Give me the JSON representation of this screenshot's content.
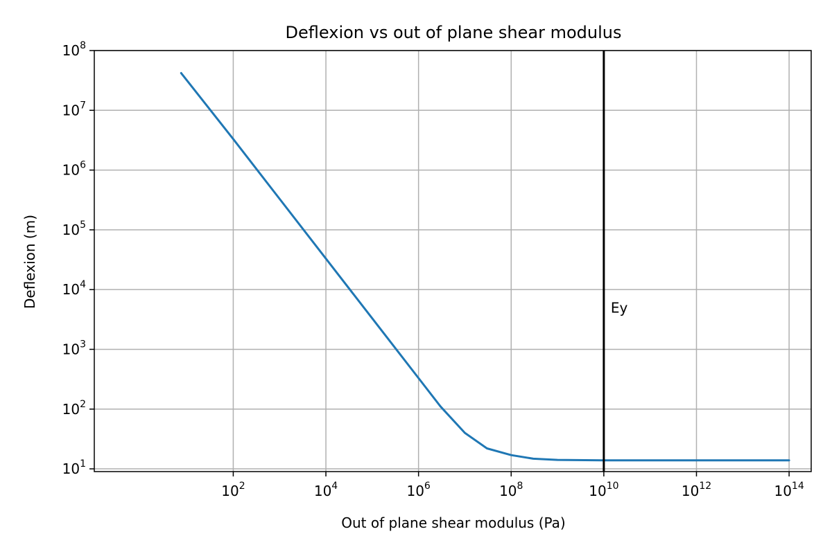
{
  "chart_data": {
    "type": "line",
    "title": "Deflexion vs out of plane shear modulus",
    "xlabel": "Out of plane shear modulus (Pa)",
    "ylabel": "Deflexion (m)",
    "xscale": "log",
    "yscale": "log",
    "xlim": [
      0.1,
      300000000000000
    ],
    "ylim": [
      9,
      100000000
    ],
    "grid": true,
    "x_ticks": [
      {
        "value": 100,
        "base": "10",
        "exp": "2"
      },
      {
        "value": 10000,
        "base": "10",
        "exp": "4"
      },
      {
        "value": 1000000,
        "base": "10",
        "exp": "6"
      },
      {
        "value": 100000000,
        "base": "10",
        "exp": "8"
      },
      {
        "value": 10000000000,
        "base": "10",
        "exp": "10"
      },
      {
        "value": 1000000000000,
        "base": "10",
        "exp": "12"
      },
      {
        "value": 100000000000000,
        "base": "10",
        "exp": "14"
      }
    ],
    "y_ticks": [
      {
        "value": 10,
        "base": "10",
        "exp": "1"
      },
      {
        "value": 100,
        "base": "10",
        "exp": "2"
      },
      {
        "value": 1000,
        "base": "10",
        "exp": "3"
      },
      {
        "value": 10000,
        "base": "10",
        "exp": "4"
      },
      {
        "value": 100000,
        "base": "10",
        "exp": "5"
      },
      {
        "value": 1000000,
        "base": "10",
        "exp": "6"
      },
      {
        "value": 10000000,
        "base": "10",
        "exp": "7"
      },
      {
        "value": 100000000,
        "base": "10",
        "exp": "8"
      }
    ],
    "series": [
      {
        "color": "#1f77b4",
        "x": [
          7.5,
          100,
          1000,
          10000,
          100000,
          1000000,
          3000000,
          10000000,
          30000000,
          100000000,
          300000000,
          1000000000,
          10000000000,
          100000000000,
          1000000000000,
          10000000000000,
          100000000000000
        ],
        "y": [
          42000000,
          3300000,
          330000,
          33000,
          3300,
          330,
          110,
          40,
          22,
          17,
          14.8,
          14.1,
          13.9,
          13.9,
          13.9,
          13.9,
          13.9
        ]
      }
    ],
    "vline": {
      "x": 10000000000,
      "color": "#000000",
      "label": "Ey",
      "label_y": 3000
    }
  }
}
